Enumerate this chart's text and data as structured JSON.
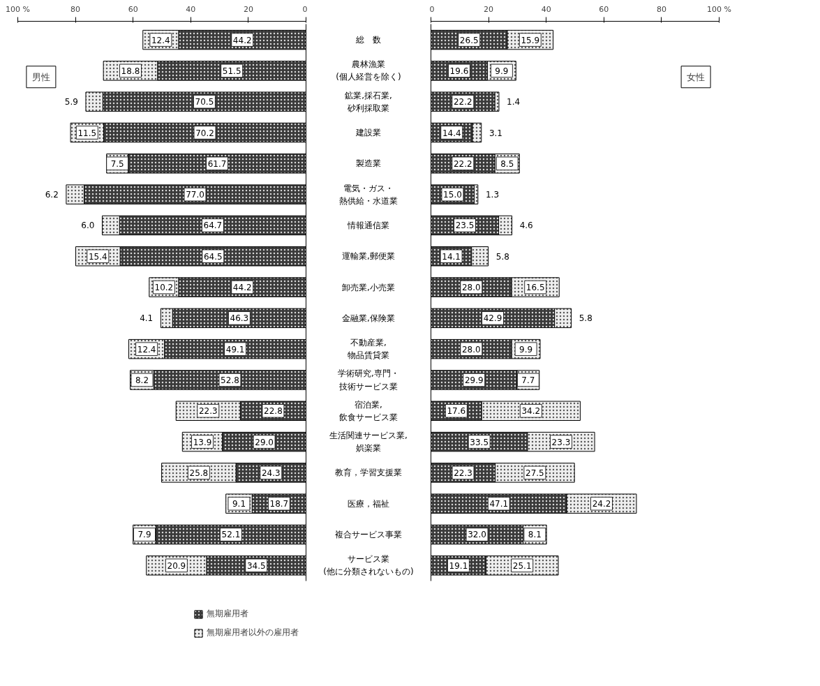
{
  "chart_data": [
    {
      "type": "bar",
      "orientation": "horizontal",
      "stacked": true,
      "tick_labels": "x",
      "title": "男性",
      "legend": "bottom right",
      "categories": [
        "総　数",
        "農林漁業(個人経営を除く)",
        "鉱業,採石業,砂利採取業",
        "建設業",
        "製造業",
        "電気・ガス・熱供給・水道業",
        "情報通信業",
        "運輸業,郵便業",
        "卸売業,小売業",
        "金融業,保険業",
        "不動産業,物品賃貸業",
        "学術研究,専門・技術サービス業",
        "宿泊業,飲食サービス業",
        "生活関連サービス業,娯楽業",
        "教育，学習支援業",
        "医療，福祉",
        "複合サービス事業",
        "サービス業(他に分類されないもの)"
      ],
      "xlim": [
        100,
        0
      ],
      "xticks": [
        {
          "value": 100,
          "label": "100 %"
        },
        80,
        60,
        40,
        20,
        0
      ],
      "series": [
        {
          "name": "無期雇用者",
          "color": "#3a3a3a",
          "values": [
            44.2,
            51.5,
            70.5,
            70.2,
            61.7,
            77.0,
            64.7,
            64.5,
            44.2,
            46.3,
            49.1,
            52.8,
            22.8,
            29.0,
            24.3,
            18.7,
            52.1,
            34.5
          ],
          "value_labels": [
            "44.2",
            "51.5",
            "70.5",
            "70.2",
            "61.7",
            "77.0",
            "64.7",
            "64.5",
            "44.2",
            "46.3",
            "49.1",
            "52.8",
            "22.8",
            "29.0",
            "24.3",
            "18.7",
            "52.1",
            "34.5"
          ]
        },
        {
          "name": "無期雇用者以外の雇用者",
          "color": "#eeeeee",
          "values": [
            12.4,
            18.8,
            5.9,
            11.5,
            7.5,
            6.2,
            6.0,
            15.4,
            10.2,
            4.1,
            12.4,
            8.2,
            22.3,
            13.9,
            25.8,
            9.1,
            7.9,
            20.9
          ],
          "value_labels": [
            "12.4",
            "18.8",
            "5.9",
            "11.5",
            "7.5",
            "6.2",
            "6.0",
            "15.4",
            "10.2",
            "4.1",
            "12.4",
            "8.2",
            "22.3",
            "13.9",
            "25.8",
            "9.1",
            "7.9",
            "20.9"
          ]
        }
      ]
    },
    {
      "type": "bar",
      "orientation": "horizontal",
      "stacked": true,
      "tick_labels": "x",
      "title": "女性",
      "categories": [
        "総　数",
        "農林漁業(個人経営を除く)",
        "鉱業,採石業,砂利採取業",
        "建設業",
        "製造業",
        "電気・ガス・熱供給・水道業",
        "情報通信業",
        "運輸業,郵便業",
        "卸売業,小売業",
        "金融業,保険業",
        "不動産業,物品賃貸業",
        "学術研究,専門・技術サービス業",
        "宿泊業,飲食サービス業",
        "生活関連サービス業,娯楽業",
        "教育，学習支援業",
        "医療，福祉",
        "複合サービス事業",
        "サービス業(他に分類されないもの)"
      ],
      "xlim": [
        0,
        100
      ],
      "xticks": [
        0,
        20,
        40,
        60,
        80,
        {
          "value": 100,
          "label": "100 %"
        }
      ],
      "series": [
        {
          "color": "#3a3a3a",
          "values": [
            26.5,
            19.6,
            22.2,
            14.4,
            22.2,
            15.0,
            23.5,
            14.1,
            28.0,
            42.9,
            28.0,
            29.9,
            17.6,
            33.5,
            22.3,
            47.1,
            32.0,
            19.1
          ],
          "value_labels": [
            "26.5",
            "19.6",
            "22.2",
            "14.4",
            "22.2",
            "15.0",
            "23.5",
            "14.1",
            "28.0",
            "42.9",
            "28.0",
            "29.9",
            "17.6",
            "33.5",
            "22.3",
            "47.1",
            "32.0",
            "19.1"
          ]
        },
        {
          "color": "#eeeeee",
          "values": [
            15.9,
            9.9,
            1.4,
            3.1,
            8.5,
            1.3,
            4.6,
            5.8,
            16.5,
            5.8,
            9.9,
            7.7,
            34.2,
            23.3,
            27.5,
            24.2,
            8.1,
            25.1
          ],
          "value_labels": [
            "15.9",
            "9.9",
            "1.4",
            "3.1",
            "8.5",
            "1.3",
            "4.6",
            "5.8",
            "16.5",
            "5.8",
            "9.9",
            "7.7",
            "34.2",
            "23.3",
            "27.5",
            "24.2",
            "8.1",
            "25.1"
          ]
        }
      ]
    }
  ]
}
